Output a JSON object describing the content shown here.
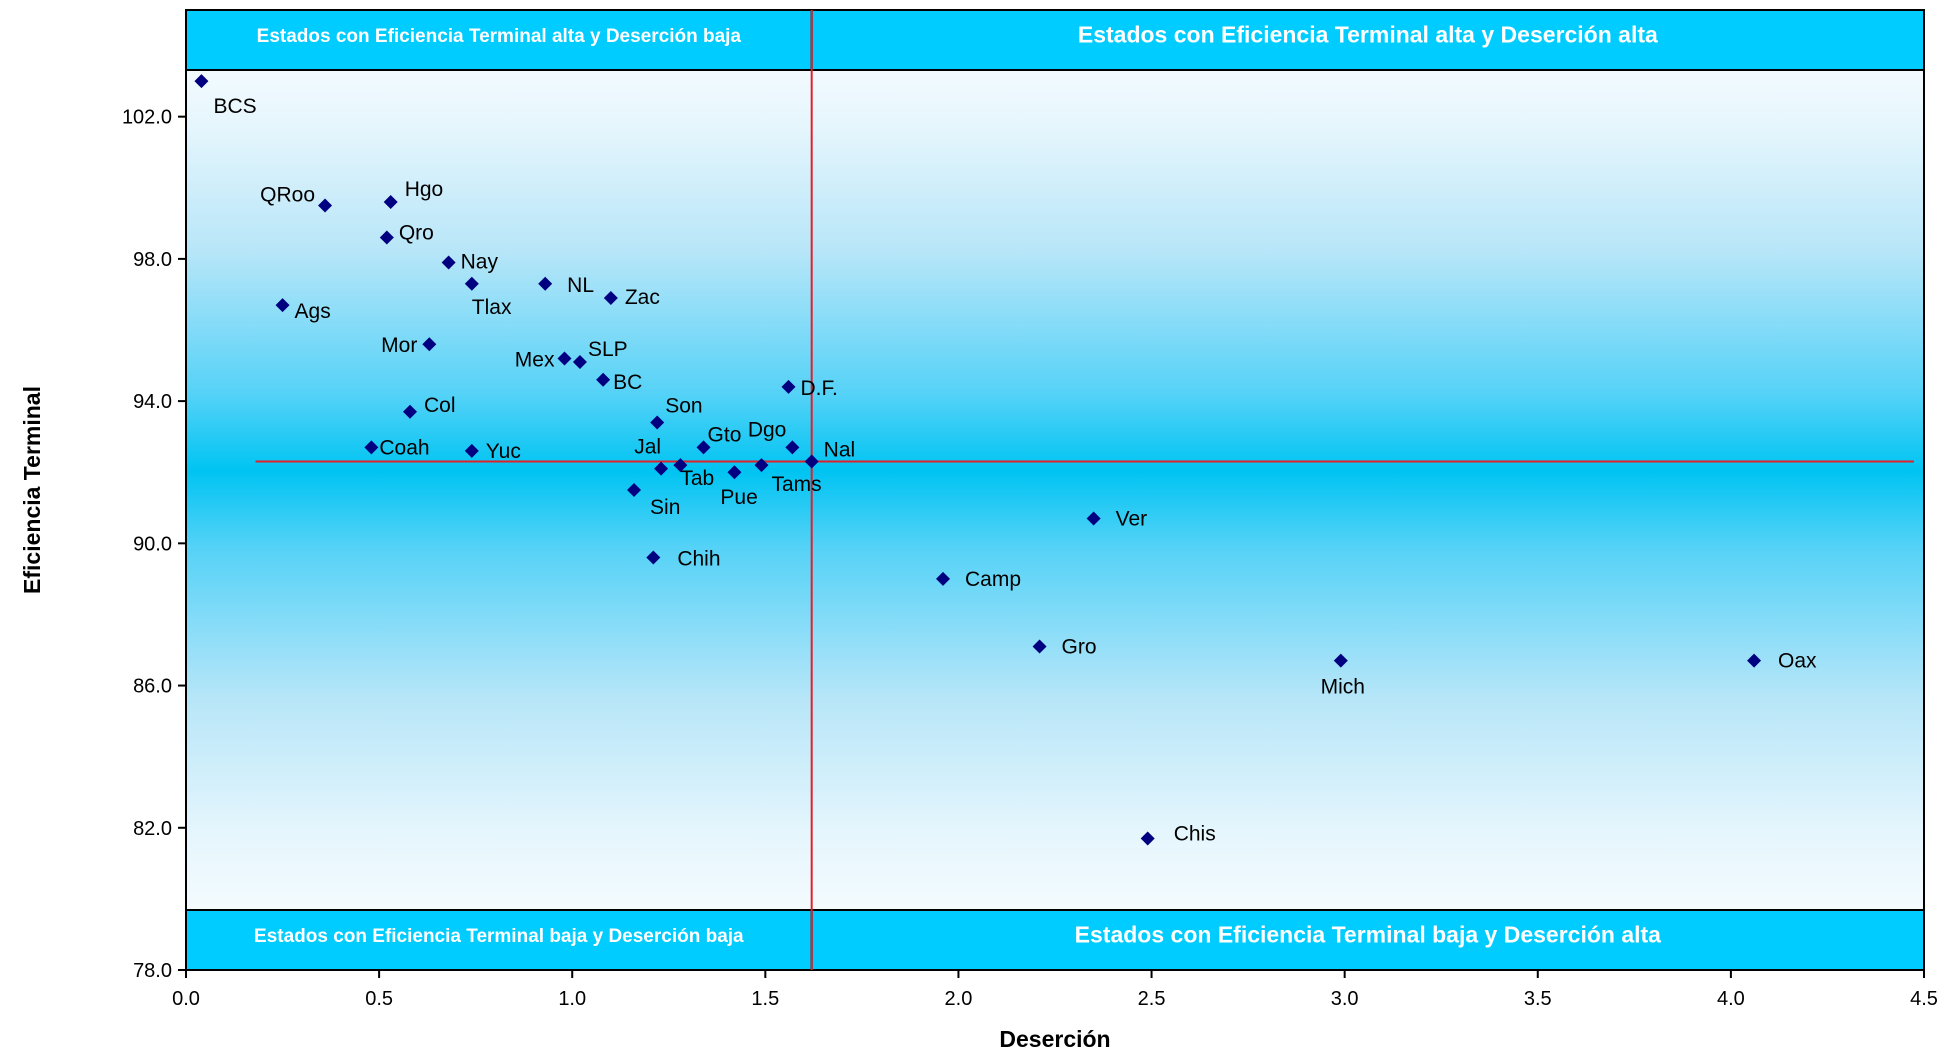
{
  "chart_data": {
    "type": "scatter",
    "xlabel": "Deserción",
    "ylabel": "Eficiencia Terminal",
    "xlim": [
      0.0,
      4.5
    ],
    "ylim": [
      78.0,
      105.0
    ],
    "x_ticks": [
      "0.0",
      "0.5",
      "1.0",
      "1.5",
      "2.0",
      "2.5",
      "3.0",
      "3.5",
      "4.0",
      "4.5"
    ],
    "y_ticks": [
      "78.0",
      "82.0",
      "86.0",
      "90.0",
      "94.0",
      "98.0",
      "102.0"
    ],
    "marker_color": "#000080",
    "reference_line_color": "#e0202a",
    "quadrant_color": "#00ccff",
    "reference": {
      "x": 1.62,
      "y": 92.3
    },
    "quadrants": {
      "top_left": "Estados con Eficiencia Terminal alta y Deserción baja",
      "top_right": "Estados con Eficiencia Terminal alta y Deserción alta",
      "bottom_left": "Estados con Eficiencia Terminal baja y Deserción baja",
      "bottom_right": "Estados con Eficiencia Terminal baja y Deserción alta"
    },
    "points": [
      {
        "label": "BCS",
        "x": 0.04,
        "y": 103.0
      },
      {
        "label": "QRoo",
        "x": 0.36,
        "y": 99.5
      },
      {
        "label": "Hgo",
        "x": 0.53,
        "y": 99.6
      },
      {
        "label": "Qro",
        "x": 0.52,
        "y": 98.6
      },
      {
        "label": "Nay",
        "x": 0.68,
        "y": 97.9
      },
      {
        "label": "Tlax",
        "x": 0.74,
        "y": 97.3
      },
      {
        "label": "NL",
        "x": 0.93,
        "y": 97.3
      },
      {
        "label": "Zac",
        "x": 1.1,
        "y": 96.9
      },
      {
        "label": "Ags",
        "x": 0.25,
        "y": 96.7
      },
      {
        "label": "Mor",
        "x": 0.63,
        "y": 95.6
      },
      {
        "label": "Mex",
        "x": 0.98,
        "y": 95.2
      },
      {
        "label": "SLP",
        "x": 1.02,
        "y": 95.1
      },
      {
        "label": "BC",
        "x": 1.08,
        "y": 94.6
      },
      {
        "label": "D.F.",
        "x": 1.56,
        "y": 94.4
      },
      {
        "label": "Col",
        "x": 0.58,
        "y": 93.7
      },
      {
        "label": "Son",
        "x": 1.22,
        "y": 93.4
      },
      {
        "label": "Coah",
        "x": 0.48,
        "y": 92.7
      },
      {
        "label": "Yuc",
        "x": 0.74,
        "y": 92.6
      },
      {
        "label": "Gto",
        "x": 1.34,
        "y": 92.7
      },
      {
        "label": "Dgo",
        "x": 1.57,
        "y": 92.7
      },
      {
        "label": "Nal",
        "x": 1.62,
        "y": 92.3
      },
      {
        "label": "Jal",
        "x": 1.23,
        "y": 92.1
      },
      {
        "label": "Tab",
        "x": 1.28,
        "y": 92.2
      },
      {
        "label": "Tams",
        "x": 1.49,
        "y": 92.2
      },
      {
        "label": "Pue",
        "x": 1.42,
        "y": 92.0
      },
      {
        "label": "Sin",
        "x": 1.16,
        "y": 91.5
      },
      {
        "label": "Chih",
        "x": 1.21,
        "y": 89.6
      },
      {
        "label": "Ver",
        "x": 2.35,
        "y": 90.7
      },
      {
        "label": "Camp",
        "x": 1.96,
        "y": 89.0
      },
      {
        "label": "Gro",
        "x": 2.21,
        "y": 87.1
      },
      {
        "label": "Mich",
        "x": 2.99,
        "y": 86.7
      },
      {
        "label": "Oax",
        "x": 4.06,
        "y": 86.7
      },
      {
        "label": "Chis",
        "x": 2.49,
        "y": 81.7
      }
    ]
  }
}
